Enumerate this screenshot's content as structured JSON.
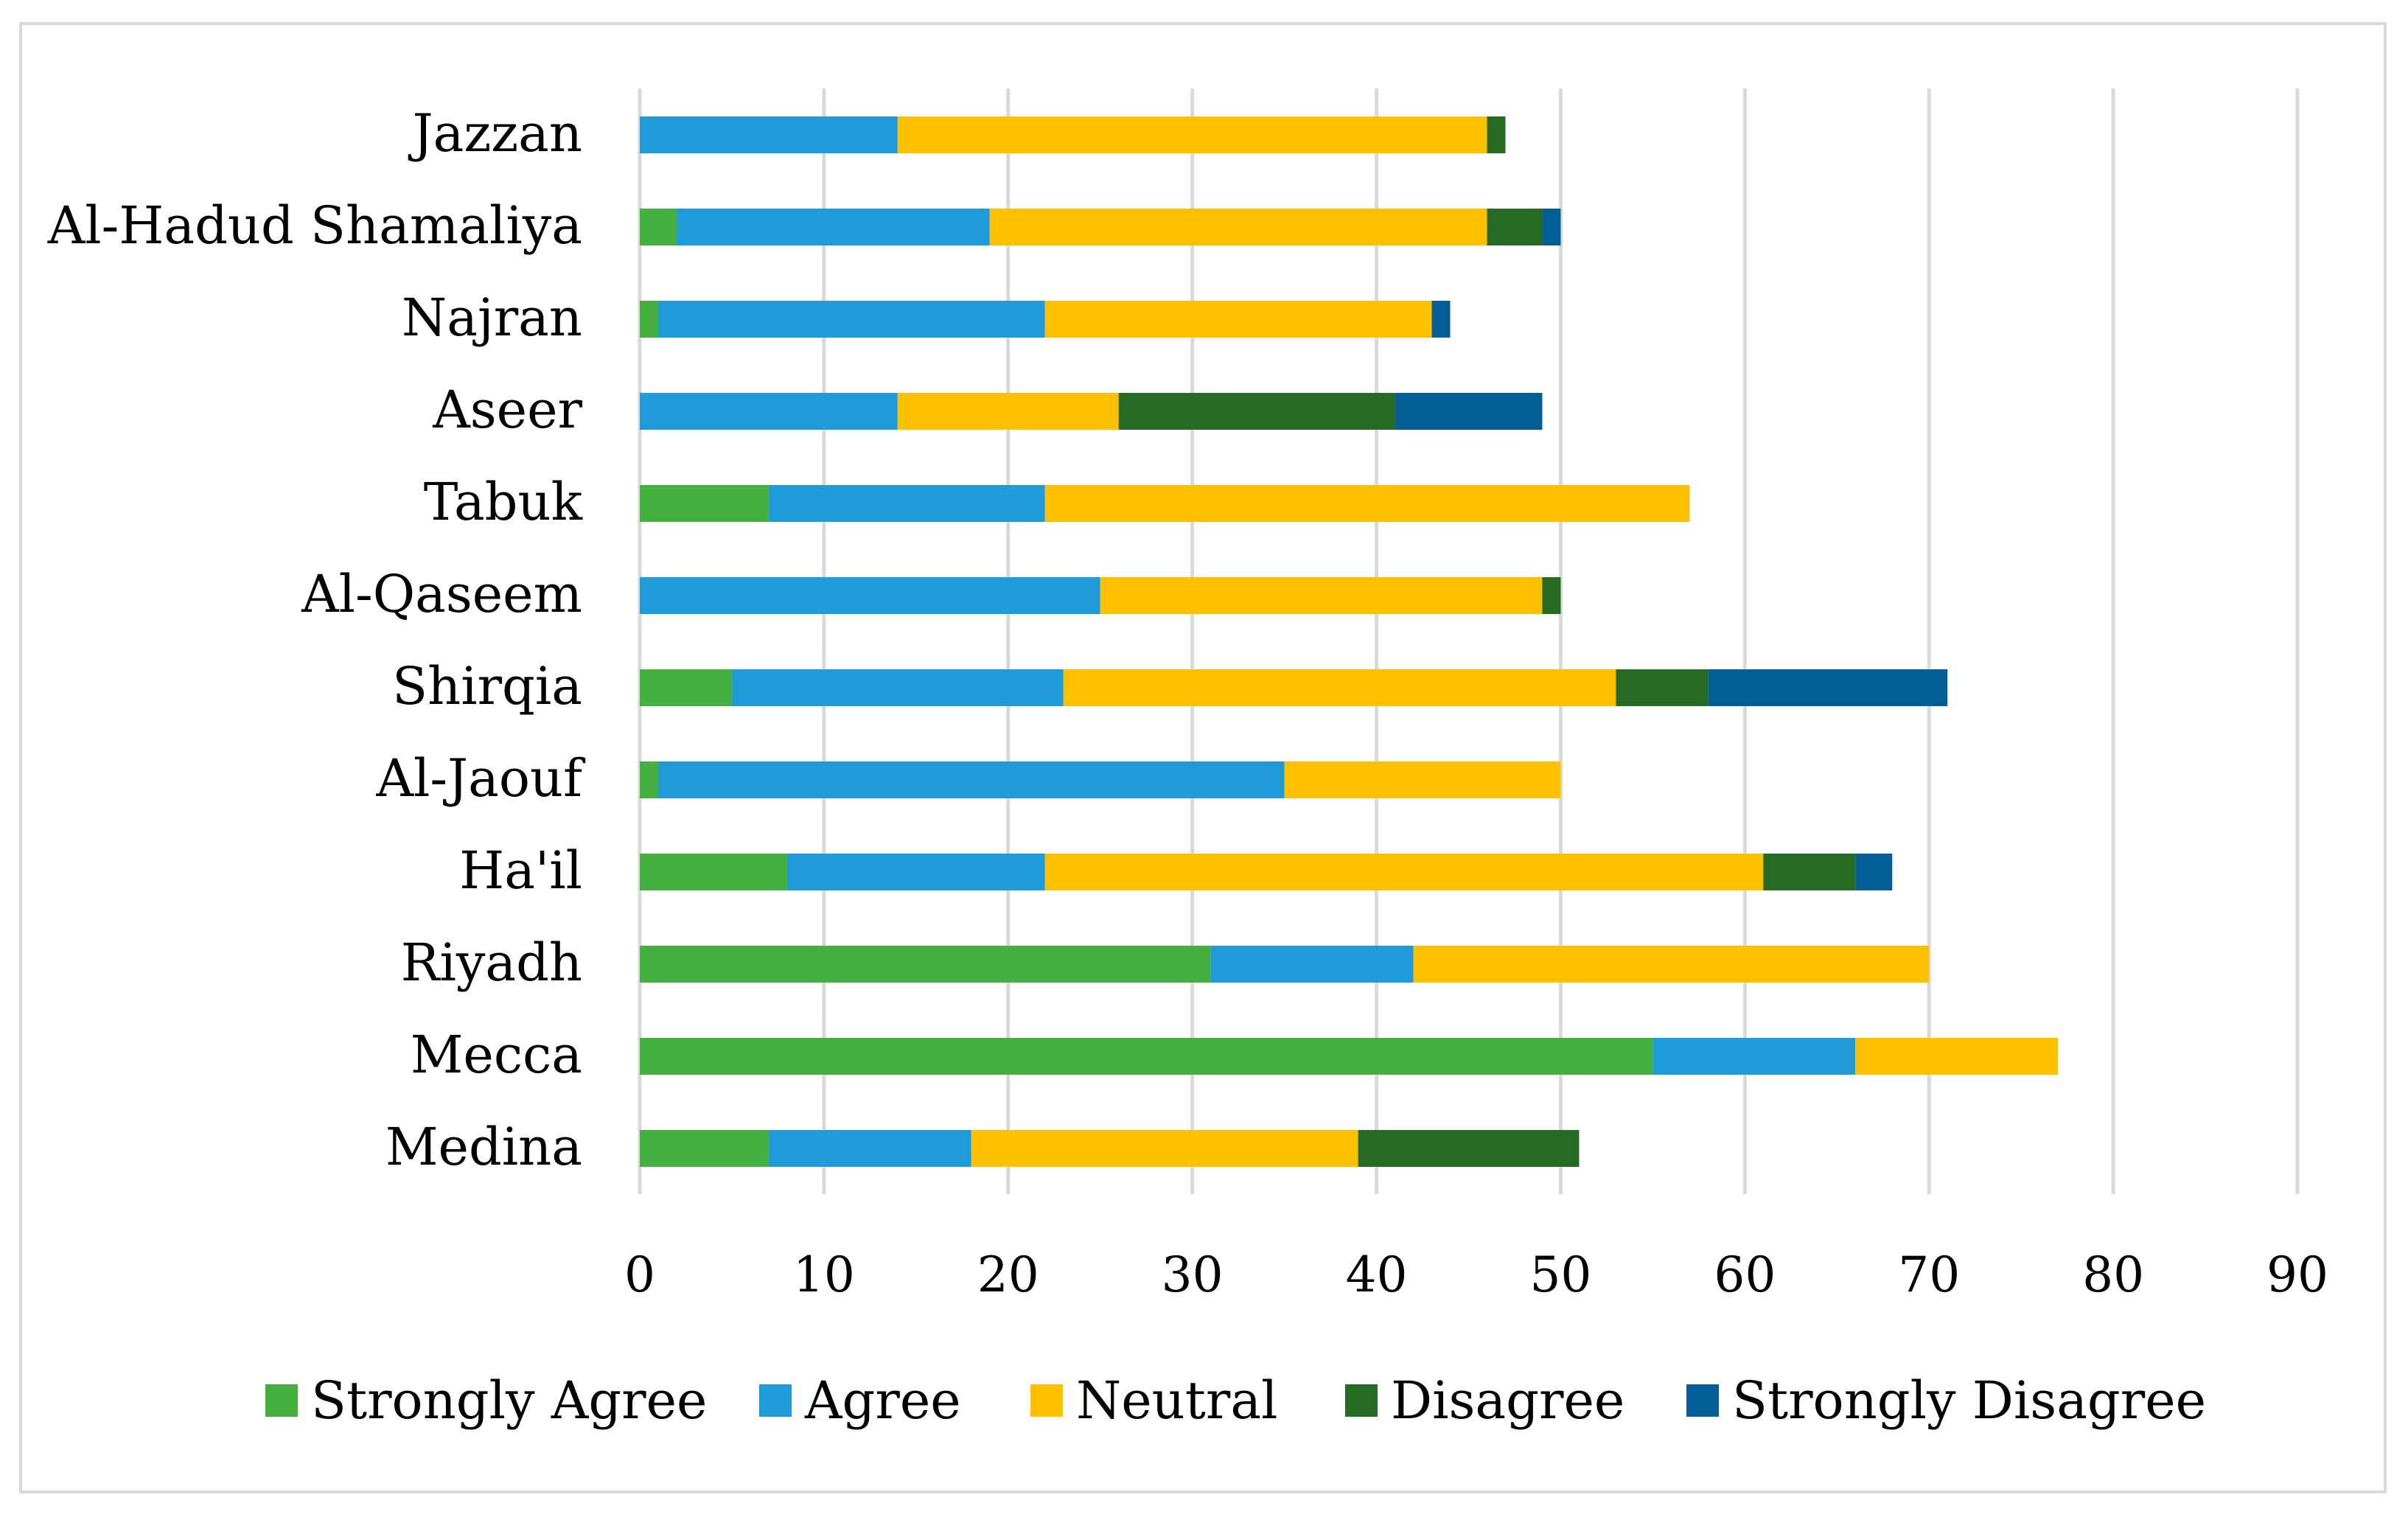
{
  "chart_data": {
    "type": "bar",
    "orientation": "horizontal",
    "stacked": true,
    "title": "",
    "xlabel": "",
    "ylabel": "",
    "xlim": [
      0,
      90
    ],
    "x_ticks": [
      0,
      10,
      20,
      30,
      40,
      50,
      60,
      70,
      80,
      90
    ],
    "grid": true,
    "legend_position": "bottom",
    "categories": [
      "Jazzan",
      "Al-Hadud Shamaliya",
      "Najran",
      "Aseer",
      "Tabuk",
      "Al-Qaseem",
      "Shirqia",
      "Al-Jaouf",
      "Ha'il",
      "Riyadh",
      "Mecca",
      "Medina"
    ],
    "series": [
      {
        "name": "Strongly Agree",
        "color": "#44b03f",
        "values": [
          0,
          2,
          1,
          0,
          7,
          0,
          5,
          1,
          8,
          31,
          55,
          7
        ]
      },
      {
        "name": "Agree",
        "color": "#1f9bd9",
        "values": [
          14,
          17,
          21,
          14,
          15,
          25,
          18,
          34,
          14,
          11,
          11,
          11
        ]
      },
      {
        "name": "Neutral",
        "color": "#ffc000",
        "values": [
          32,
          27,
          21,
          12,
          35,
          24,
          30,
          15,
          39,
          28,
          11,
          21
        ]
      },
      {
        "name": "Disagree",
        "color": "#256b23",
        "values": [
          1,
          3,
          0,
          15,
          0,
          1,
          5,
          0,
          5,
          0,
          0,
          12
        ]
      },
      {
        "name": "Strongly Disagree",
        "color": "#045e96",
        "values": [
          0,
          1,
          1,
          8,
          0,
          0,
          13,
          0,
          2,
          0,
          0,
          0
        ]
      }
    ]
  }
}
